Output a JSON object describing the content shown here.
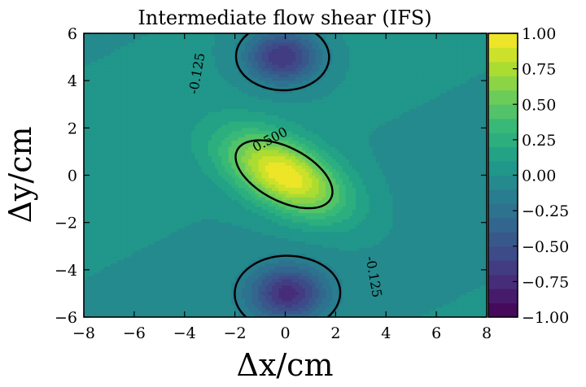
{
  "chart_data": {
    "type": "heatmap",
    "subtype": "filled-contour",
    "title": "Intermediate flow shear (IFS)",
    "xlabel": "Δx/cm",
    "ylabel": "Δy/cm",
    "xlim": [
      -8,
      8
    ],
    "ylim": [
      -6,
      6
    ],
    "xticks": [
      "−8",
      "−6",
      "−4",
      "−2",
      "0",
      "2",
      "4",
      "6",
      "8"
    ],
    "yticks": [
      "−6",
      "−4",
      "−2",
      "0",
      "2",
      "4",
      "6"
    ],
    "colormap": "viridis",
    "colorbar": {
      "range": [
        -1.0,
        1.0
      ],
      "levels": 20,
      "ticks": [
        "1.00",
        "0.75",
        "0.50",
        "0.25",
        "0.00",
        "−0.25",
        "−0.50",
        "−0.75",
        "−1.00"
      ]
    },
    "field_features": [
      {
        "kind": "positive-peak",
        "x": 0,
        "y": 0,
        "value": 1.0
      },
      {
        "kind": "negative-lobe",
        "x": 0,
        "y": 5,
        "value": -0.7
      },
      {
        "kind": "negative-lobe",
        "x": 0,
        "y": -5,
        "value": -0.7
      }
    ],
    "contour_lines": [
      {
        "level": 0.5,
        "label": "0.500",
        "style": "solid"
      },
      {
        "level": -0.125,
        "label": "-0.125",
        "style": "dashed"
      }
    ]
  }
}
